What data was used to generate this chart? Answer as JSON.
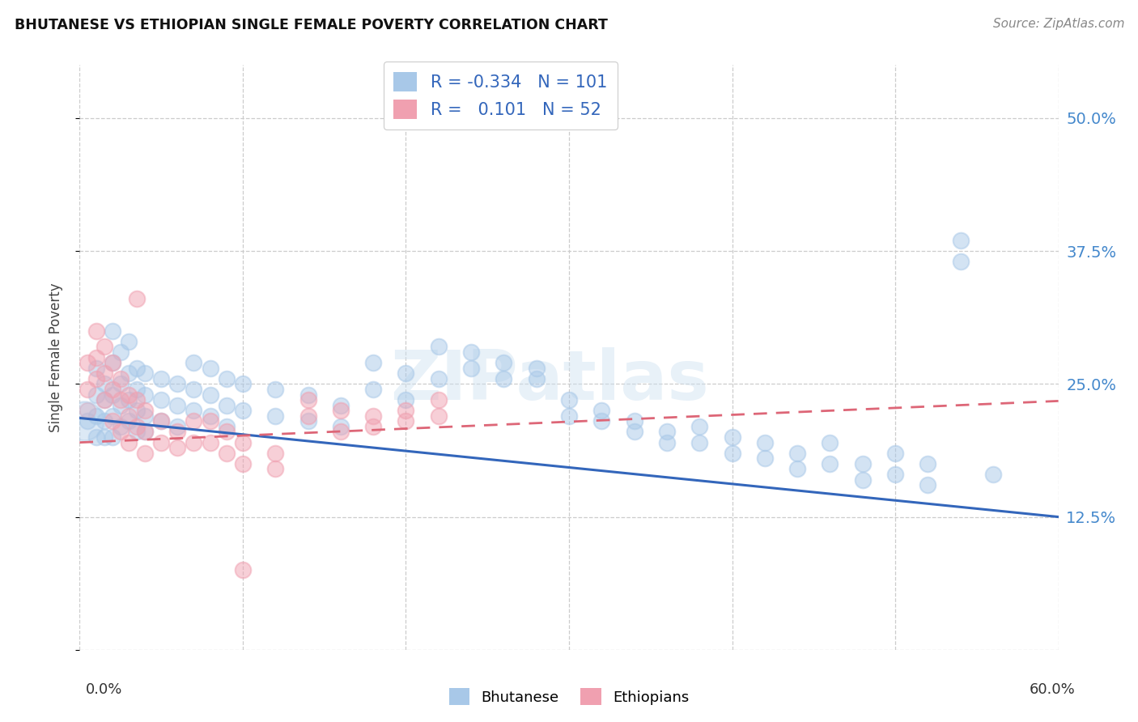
{
  "title": "BHUTANESE VS ETHIOPIAN SINGLE FEMALE POVERTY CORRELATION CHART",
  "source": "Source: ZipAtlas.com",
  "ylabel": "Single Female Poverty",
  "yticks": [
    0.0,
    0.125,
    0.25,
    0.375,
    0.5
  ],
  "ytick_labels": [
    "",
    "12.5%",
    "25.0%",
    "37.5%",
    "50.0%"
  ],
  "xlim": [
    0.0,
    0.6
  ],
  "ylim": [
    0.0,
    0.55
  ],
  "watermark": "ZIPatlas",
  "legend_blue_R": "-0.334",
  "legend_blue_N": "101",
  "legend_pink_R": "0.101",
  "legend_pink_N": "52",
  "blue_color": "#a8c8e8",
  "pink_color": "#f0a0b0",
  "blue_line_color": "#3366bb",
  "pink_line_color": "#dd6677",
  "blue_scatter": [
    [
      0.005,
      0.215
    ],
    [
      0.01,
      0.265
    ],
    [
      0.01,
      0.24
    ],
    [
      0.01,
      0.22
    ],
    [
      0.01,
      0.2
    ],
    [
      0.015,
      0.25
    ],
    [
      0.015,
      0.235
    ],
    [
      0.015,
      0.215
    ],
    [
      0.015,
      0.2
    ],
    [
      0.02,
      0.3
    ],
    [
      0.02,
      0.27
    ],
    [
      0.02,
      0.24
    ],
    [
      0.02,
      0.22
    ],
    [
      0.02,
      0.2
    ],
    [
      0.025,
      0.28
    ],
    [
      0.025,
      0.25
    ],
    [
      0.025,
      0.23
    ],
    [
      0.025,
      0.21
    ],
    [
      0.03,
      0.29
    ],
    [
      0.03,
      0.26
    ],
    [
      0.03,
      0.235
    ],
    [
      0.03,
      0.215
    ],
    [
      0.035,
      0.265
    ],
    [
      0.035,
      0.245
    ],
    [
      0.035,
      0.225
    ],
    [
      0.035,
      0.205
    ],
    [
      0.04,
      0.26
    ],
    [
      0.04,
      0.24
    ],
    [
      0.04,
      0.22
    ],
    [
      0.04,
      0.205
    ],
    [
      0.05,
      0.255
    ],
    [
      0.05,
      0.235
    ],
    [
      0.05,
      0.215
    ],
    [
      0.06,
      0.25
    ],
    [
      0.06,
      0.23
    ],
    [
      0.06,
      0.21
    ],
    [
      0.07,
      0.27
    ],
    [
      0.07,
      0.245
    ],
    [
      0.07,
      0.225
    ],
    [
      0.08,
      0.265
    ],
    [
      0.08,
      0.24
    ],
    [
      0.08,
      0.22
    ],
    [
      0.09,
      0.255
    ],
    [
      0.09,
      0.23
    ],
    [
      0.09,
      0.21
    ],
    [
      0.1,
      0.25
    ],
    [
      0.1,
      0.225
    ],
    [
      0.12,
      0.245
    ],
    [
      0.12,
      0.22
    ],
    [
      0.14,
      0.24
    ],
    [
      0.14,
      0.215
    ],
    [
      0.16,
      0.23
    ],
    [
      0.16,
      0.21
    ],
    [
      0.18,
      0.27
    ],
    [
      0.18,
      0.245
    ],
    [
      0.2,
      0.26
    ],
    [
      0.2,
      0.235
    ],
    [
      0.22,
      0.285
    ],
    [
      0.22,
      0.255
    ],
    [
      0.24,
      0.28
    ],
    [
      0.24,
      0.265
    ],
    [
      0.26,
      0.27
    ],
    [
      0.26,
      0.255
    ],
    [
      0.28,
      0.265
    ],
    [
      0.28,
      0.255
    ],
    [
      0.3,
      0.235
    ],
    [
      0.3,
      0.22
    ],
    [
      0.32,
      0.225
    ],
    [
      0.32,
      0.215
    ],
    [
      0.34,
      0.215
    ],
    [
      0.34,
      0.205
    ],
    [
      0.36,
      0.205
    ],
    [
      0.36,
      0.195
    ],
    [
      0.38,
      0.21
    ],
    [
      0.38,
      0.195
    ],
    [
      0.4,
      0.2
    ],
    [
      0.4,
      0.185
    ],
    [
      0.42,
      0.195
    ],
    [
      0.42,
      0.18
    ],
    [
      0.44,
      0.185
    ],
    [
      0.44,
      0.17
    ],
    [
      0.46,
      0.195
    ],
    [
      0.46,
      0.175
    ],
    [
      0.48,
      0.175
    ],
    [
      0.48,
      0.16
    ],
    [
      0.5,
      0.185
    ],
    [
      0.5,
      0.165
    ],
    [
      0.52,
      0.175
    ],
    [
      0.52,
      0.155
    ],
    [
      0.54,
      0.385
    ],
    [
      0.54,
      0.365
    ],
    [
      0.56,
      0.165
    ]
  ],
  "pink_scatter": [
    [
      0.005,
      0.27
    ],
    [
      0.005,
      0.245
    ],
    [
      0.005,
      0.225
    ],
    [
      0.01,
      0.3
    ],
    [
      0.01,
      0.275
    ],
    [
      0.01,
      0.255
    ],
    [
      0.015,
      0.285
    ],
    [
      0.015,
      0.26
    ],
    [
      0.015,
      0.235
    ],
    [
      0.02,
      0.27
    ],
    [
      0.02,
      0.245
    ],
    [
      0.02,
      0.215
    ],
    [
      0.025,
      0.255
    ],
    [
      0.025,
      0.235
    ],
    [
      0.025,
      0.205
    ],
    [
      0.03,
      0.24
    ],
    [
      0.03,
      0.22
    ],
    [
      0.03,
      0.195
    ],
    [
      0.035,
      0.33
    ],
    [
      0.035,
      0.235
    ],
    [
      0.035,
      0.21
    ],
    [
      0.04,
      0.225
    ],
    [
      0.04,
      0.205
    ],
    [
      0.04,
      0.185
    ],
    [
      0.05,
      0.215
    ],
    [
      0.05,
      0.195
    ],
    [
      0.06,
      0.205
    ],
    [
      0.06,
      0.19
    ],
    [
      0.07,
      0.215
    ],
    [
      0.07,
      0.195
    ],
    [
      0.08,
      0.215
    ],
    [
      0.08,
      0.195
    ],
    [
      0.09,
      0.205
    ],
    [
      0.09,
      0.185
    ],
    [
      0.1,
      0.195
    ],
    [
      0.1,
      0.175
    ],
    [
      0.12,
      0.185
    ],
    [
      0.12,
      0.17
    ],
    [
      0.14,
      0.235
    ],
    [
      0.14,
      0.22
    ],
    [
      0.16,
      0.225
    ],
    [
      0.16,
      0.205
    ],
    [
      0.18,
      0.22
    ],
    [
      0.18,
      0.21
    ],
    [
      0.2,
      0.225
    ],
    [
      0.2,
      0.215
    ],
    [
      0.22,
      0.235
    ],
    [
      0.22,
      0.22
    ],
    [
      0.1,
      0.075
    ]
  ],
  "blue_slope": -0.155,
  "blue_intercept": 0.218,
  "pink_slope": 0.065,
  "pink_intercept": 0.195
}
